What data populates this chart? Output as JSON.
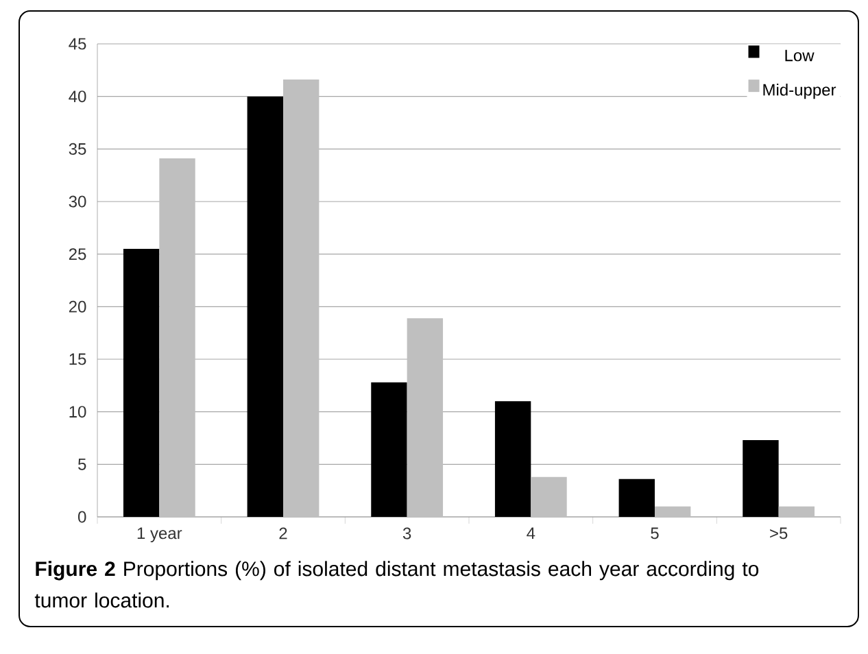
{
  "chart_data": {
    "type": "bar",
    "categories": [
      "1 year",
      "2",
      "3",
      "4",
      "5",
      ">5"
    ],
    "series": [
      {
        "name": "Low",
        "color": "#000000",
        "values": [
          25.5,
          40.0,
          12.8,
          11.0,
          3.6,
          7.3
        ]
      },
      {
        "name": "Mid-upper",
        "color": "#bfbfbf",
        "values": [
          34.1,
          41.6,
          18.9,
          3.8,
          1.0,
          1.0
        ]
      }
    ],
    "ylim": [
      0,
      45
    ],
    "yticks": [
      0,
      5,
      10,
      15,
      20,
      25,
      30,
      35,
      40,
      45
    ],
    "grid": "y",
    "legend": "top right",
    "annotations": [
      "**Figure 2** Proportions (%) of isolated distant metastasis each year according to tumor location."
    ]
  }
}
